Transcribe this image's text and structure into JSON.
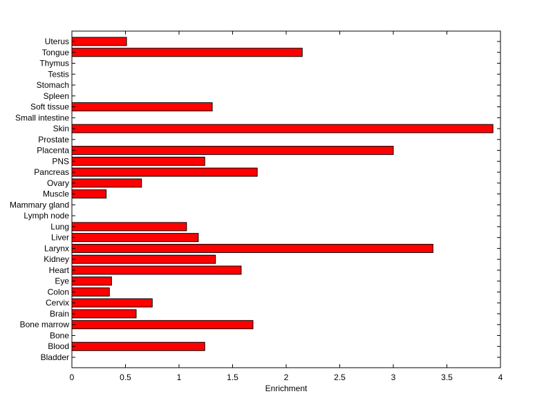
{
  "chart_data": {
    "type": "bar",
    "orientation": "horizontal",
    "title": "",
    "xlabel": "Enrichment",
    "ylabel": "",
    "xlim": [
      0,
      4
    ],
    "x_ticks": [
      "0",
      "0.5",
      "1",
      "1.5",
      "2",
      "2.5",
      "3",
      "3.5",
      "4"
    ],
    "grid": false,
    "legend": "none",
    "bar_color": "#ff0000",
    "categories": [
      "Bladder",
      "Blood",
      "Bone",
      "Bone marrow",
      "Brain",
      "Cervix",
      "Colon",
      "Eye",
      "Heart",
      "Kidney",
      "Larynx",
      "Liver",
      "Lung",
      "Lymph node",
      "Mammary gland",
      "Muscle",
      "Ovary",
      "Pancreas",
      "PNS",
      "Placenta",
      "Prostate",
      "Skin",
      "Small intestine",
      "Soft tissue",
      "Spleen",
      "Stomach",
      "Testis",
      "Thymus",
      "Tongue",
      "Uterus"
    ],
    "values": [
      0,
      1.24,
      0,
      1.69,
      0.6,
      0.75,
      0.35,
      0.37,
      1.58,
      1.34,
      3.37,
      1.18,
      1.07,
      0,
      0,
      0.32,
      0.65,
      1.73,
      1.24,
      3.0,
      0,
      3.93,
      0,
      1.31,
      0,
      0,
      0,
      0,
      2.15,
      0.51
    ]
  }
}
